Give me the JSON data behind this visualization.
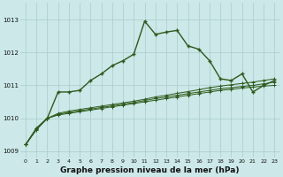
{
  "background_color": "#cce8e8",
  "grid_color": "#aacccc",
  "line_color": "#2d5a1b",
  "xlim": [
    -0.5,
    23.5
  ],
  "ylim": [
    1008.8,
    1013.5
  ],
  "yticks": [
    1009,
    1010,
    1011,
    1012,
    1013
  ],
  "xticks": [
    0,
    1,
    2,
    3,
    4,
    5,
    6,
    7,
    8,
    9,
    10,
    11,
    12,
    13,
    14,
    15,
    16,
    17,
    18,
    19,
    20,
    21,
    22,
    23
  ],
  "xlabel": "Graphe pression niveau de la mer (hPa)",
  "main_line": {
    "x": [
      0,
      1,
      2,
      3,
      4,
      5,
      6,
      7,
      8,
      9,
      10,
      11,
      12,
      13,
      14,
      15,
      16,
      17,
      18,
      19,
      20,
      21,
      22,
      23
    ],
    "y": [
      1009.2,
      1009.7,
      1010.0,
      1010.8,
      1010.8,
      1010.85,
      1011.15,
      1011.35,
      1011.6,
      1011.75,
      1011.95,
      1012.95,
      1012.55,
      1012.62,
      1012.67,
      1012.2,
      1012.1,
      1011.75,
      1011.2,
      1011.15,
      1011.35,
      1010.8,
      1011.0,
      1011.15
    ]
  },
  "band_lines": [
    [
      1009.2,
      1009.65,
      1010.0,
      1010.1,
      1010.15,
      1010.2,
      1010.25,
      1010.3,
      1010.35,
      1010.4,
      1010.45,
      1010.5,
      1010.55,
      1010.6,
      1010.65,
      1010.7,
      1010.75,
      1010.8,
      1010.85,
      1010.88,
      1010.92,
      1010.95,
      1010.98,
      1011.0
    ],
    [
      1009.2,
      1009.68,
      1010.0,
      1010.12,
      1010.18,
      1010.23,
      1010.28,
      1010.33,
      1010.38,
      1010.43,
      1010.48,
      1010.54,
      1010.6,
      1010.65,
      1010.7,
      1010.75,
      1010.8,
      1010.85,
      1010.9,
      1010.93,
      1010.97,
      1011.0,
      1011.05,
      1011.1
    ],
    [
      1009.2,
      1009.7,
      1010.0,
      1010.15,
      1010.22,
      1010.27,
      1010.32,
      1010.37,
      1010.42,
      1010.47,
      1010.52,
      1010.58,
      1010.65,
      1010.7,
      1010.76,
      1010.81,
      1010.87,
      1010.93,
      1010.98,
      1011.02,
      1011.06,
      1011.1,
      1011.15,
      1011.2
    ]
  ]
}
